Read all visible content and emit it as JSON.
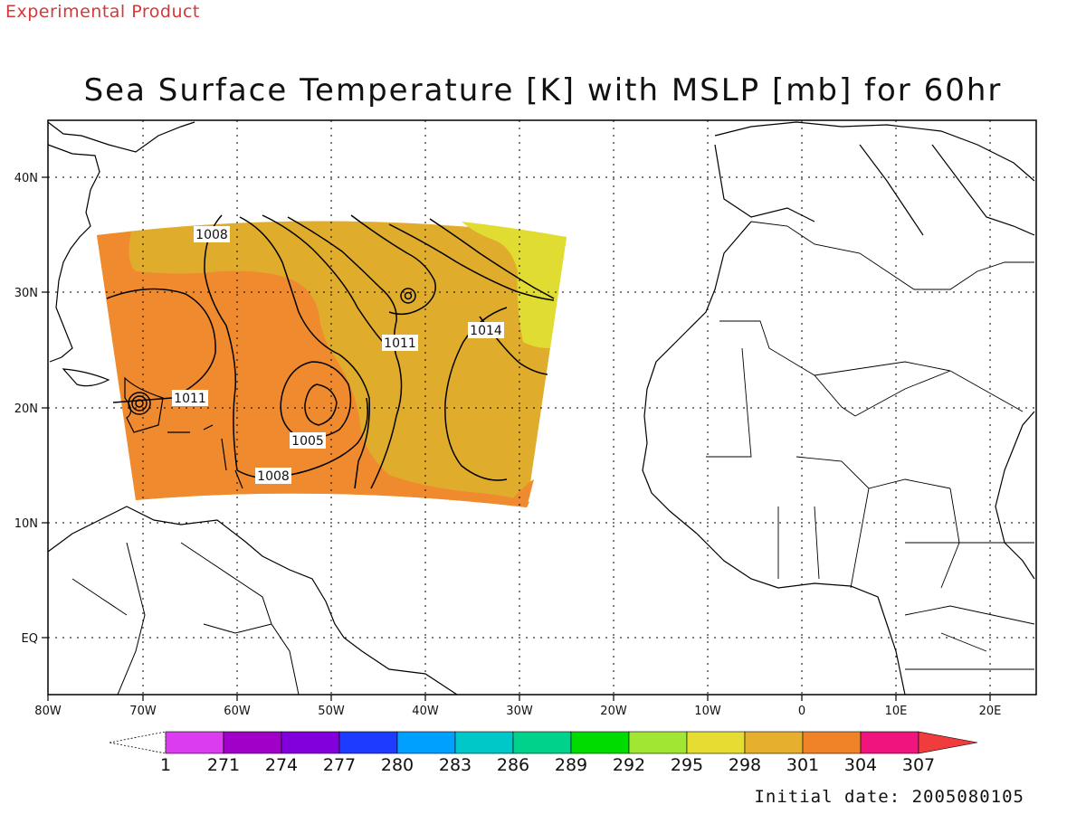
{
  "header": {
    "experimental_label": "Experimental Product",
    "title": "Sea Surface Temperature [K] with MSLP [mb] for 60hr"
  },
  "footer": {
    "initial_date": "Initial date: 2005080105"
  },
  "map": {
    "x_ticks": [
      "80W",
      "70W",
      "60W",
      "50W",
      "40W",
      "30W",
      "20W",
      "10W",
      "0",
      "10E",
      "20E"
    ],
    "y_ticks": [
      "40N",
      "30N",
      "20N",
      "10N",
      "EQ"
    ],
    "shading_colors": {
      "c298": "#e0dc32",
      "c301": "#e0ac2c",
      "c304": "#f08a2e"
    },
    "contour_labels": [
      "1008",
      "1011",
      "1014",
      "1011",
      "1005",
      "1008"
    ]
  },
  "colorbar": {
    "labels": [
      "1",
      "271",
      "274",
      "277",
      "280",
      "283",
      "286",
      "289",
      "292",
      "295",
      "298",
      "301",
      "304",
      "307"
    ],
    "colors": [
      "#dc3cf0",
      "#a000c8",
      "#8200dc",
      "#1e3cff",
      "#00a0ff",
      "#00c8c8",
      "#00d28c",
      "#00dc00",
      "#a0e632",
      "#e6dc32",
      "#e6af2d",
      "#f08228",
      "#f0147f",
      "#f03c3c"
    ]
  }
}
